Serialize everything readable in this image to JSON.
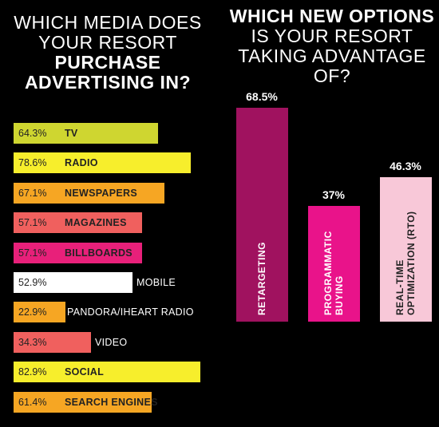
{
  "left_title": {
    "line1": "WHICH MEDIA DOES",
    "line2": "YOUR RESORT",
    "line3": "PURCHASE",
    "line4": "ADVERTISING IN?"
  },
  "right_title": {
    "line1": "WHICH NEW OPTIONS",
    "line2": "IS YOUR RESORT",
    "line3": "TAKING ADVANTAGE",
    "line4": "OF?"
  },
  "chart_data": [
    {
      "type": "bar",
      "orientation": "horizontal",
      "title": "WHICH MEDIA DOES YOUR RESORT PURCHASE ADVERTISING IN?",
      "categories": [
        "TV",
        "RADIO",
        "NEWSPAPERS",
        "MAGAZINES",
        "BILLBOARDS",
        "MOBILE",
        "PANDORA/IHEART RADIO",
        "VIDEO",
        "SOCIAL",
        "SEARCH ENGINES"
      ],
      "values": [
        64.3,
        78.6,
        67.1,
        57.1,
        57.1,
        52.9,
        22.9,
        34.3,
        82.9,
        61.4
      ],
      "value_labels": [
        "64.3%",
        "78.6%",
        "67.1%",
        "57.1%",
        "57.1%",
        "52.9%",
        "22.9%",
        "34.3%",
        "82.9%",
        "61.4%"
      ],
      "colors": [
        "#cfd630",
        "#f7ee2c",
        "#f6a623",
        "#f0605e",
        "#e8207a",
        "#ffffff",
        "#f6a623",
        "#f0605e",
        "#f7ee2c",
        "#f6a623"
      ],
      "xlim": [
        0,
        100
      ]
    },
    {
      "type": "bar",
      "orientation": "vertical",
      "title": "WHICH NEW OPTIONS IS YOUR RESORT TAKING ADVANTAGE OF?",
      "categories": [
        [
          "RETARGETING"
        ],
        [
          "PROGRAMMATIC",
          "BUYING"
        ],
        [
          "REAL-TIME",
          "OPTIMIZATION (RTO)"
        ]
      ],
      "values": [
        68.5,
        37,
        46.3
      ],
      "value_labels": [
        "68.5%",
        "37%",
        "46.3%"
      ],
      "colors": [
        "#a0125f",
        "#e9138a",
        "#f8c8d8"
      ],
      "ylim": [
        0,
        100
      ]
    }
  ]
}
